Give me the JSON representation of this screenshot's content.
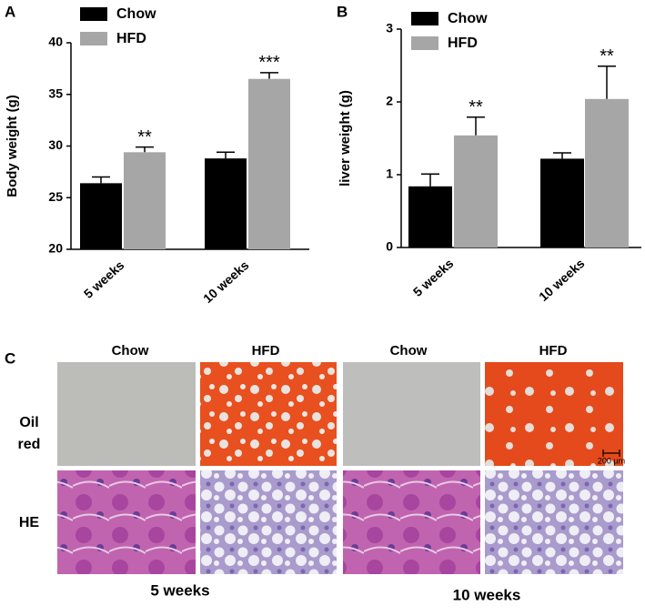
{
  "chart_data": [
    {
      "type": "bar",
      "label": "A",
      "ylabel": "Body weight (g)",
      "categories": [
        "5 weeks",
        "10 weeks"
      ],
      "series": [
        {
          "name": "Chow",
          "color": "#000000",
          "values": [
            26.4,
            28.8
          ],
          "errors": [
            0.6,
            0.6
          ]
        },
        {
          "name": "HFD",
          "color": "#a6a6a6",
          "values": [
            29.4,
            36.5
          ],
          "errors": [
            0.5,
            0.6
          ],
          "significance": [
            "**",
            "***"
          ]
        }
      ],
      "ylim": [
        20,
        40
      ],
      "yticks": [
        20,
        25,
        30,
        35,
        40
      ]
    },
    {
      "type": "bar",
      "label": "B",
      "ylabel": "liver weight (g)",
      "categories": [
        "5 weeks",
        "10 weeks"
      ],
      "series": [
        {
          "name": "Chow",
          "color": "#000000",
          "values": [
            0.84,
            1.22
          ],
          "errors": [
            0.17,
            0.08
          ]
        },
        {
          "name": "HFD",
          "color": "#a6a6a6",
          "values": [
            1.54,
            2.04
          ],
          "errors": [
            0.25,
            0.45
          ],
          "significance": [
            "**",
            "**"
          ]
        }
      ],
      "ylim": [
        0,
        3
      ],
      "yticks": [
        0,
        1,
        2,
        3
      ]
    }
  ],
  "panel_c": {
    "label": "C",
    "columns": [
      "Chow",
      "HFD",
      "Chow",
      "HFD"
    ],
    "rows": [
      "Oil\nred",
      "HE"
    ],
    "scale_bar": "200 µm",
    "groups": [
      "5 weeks",
      "10 weeks"
    ]
  }
}
